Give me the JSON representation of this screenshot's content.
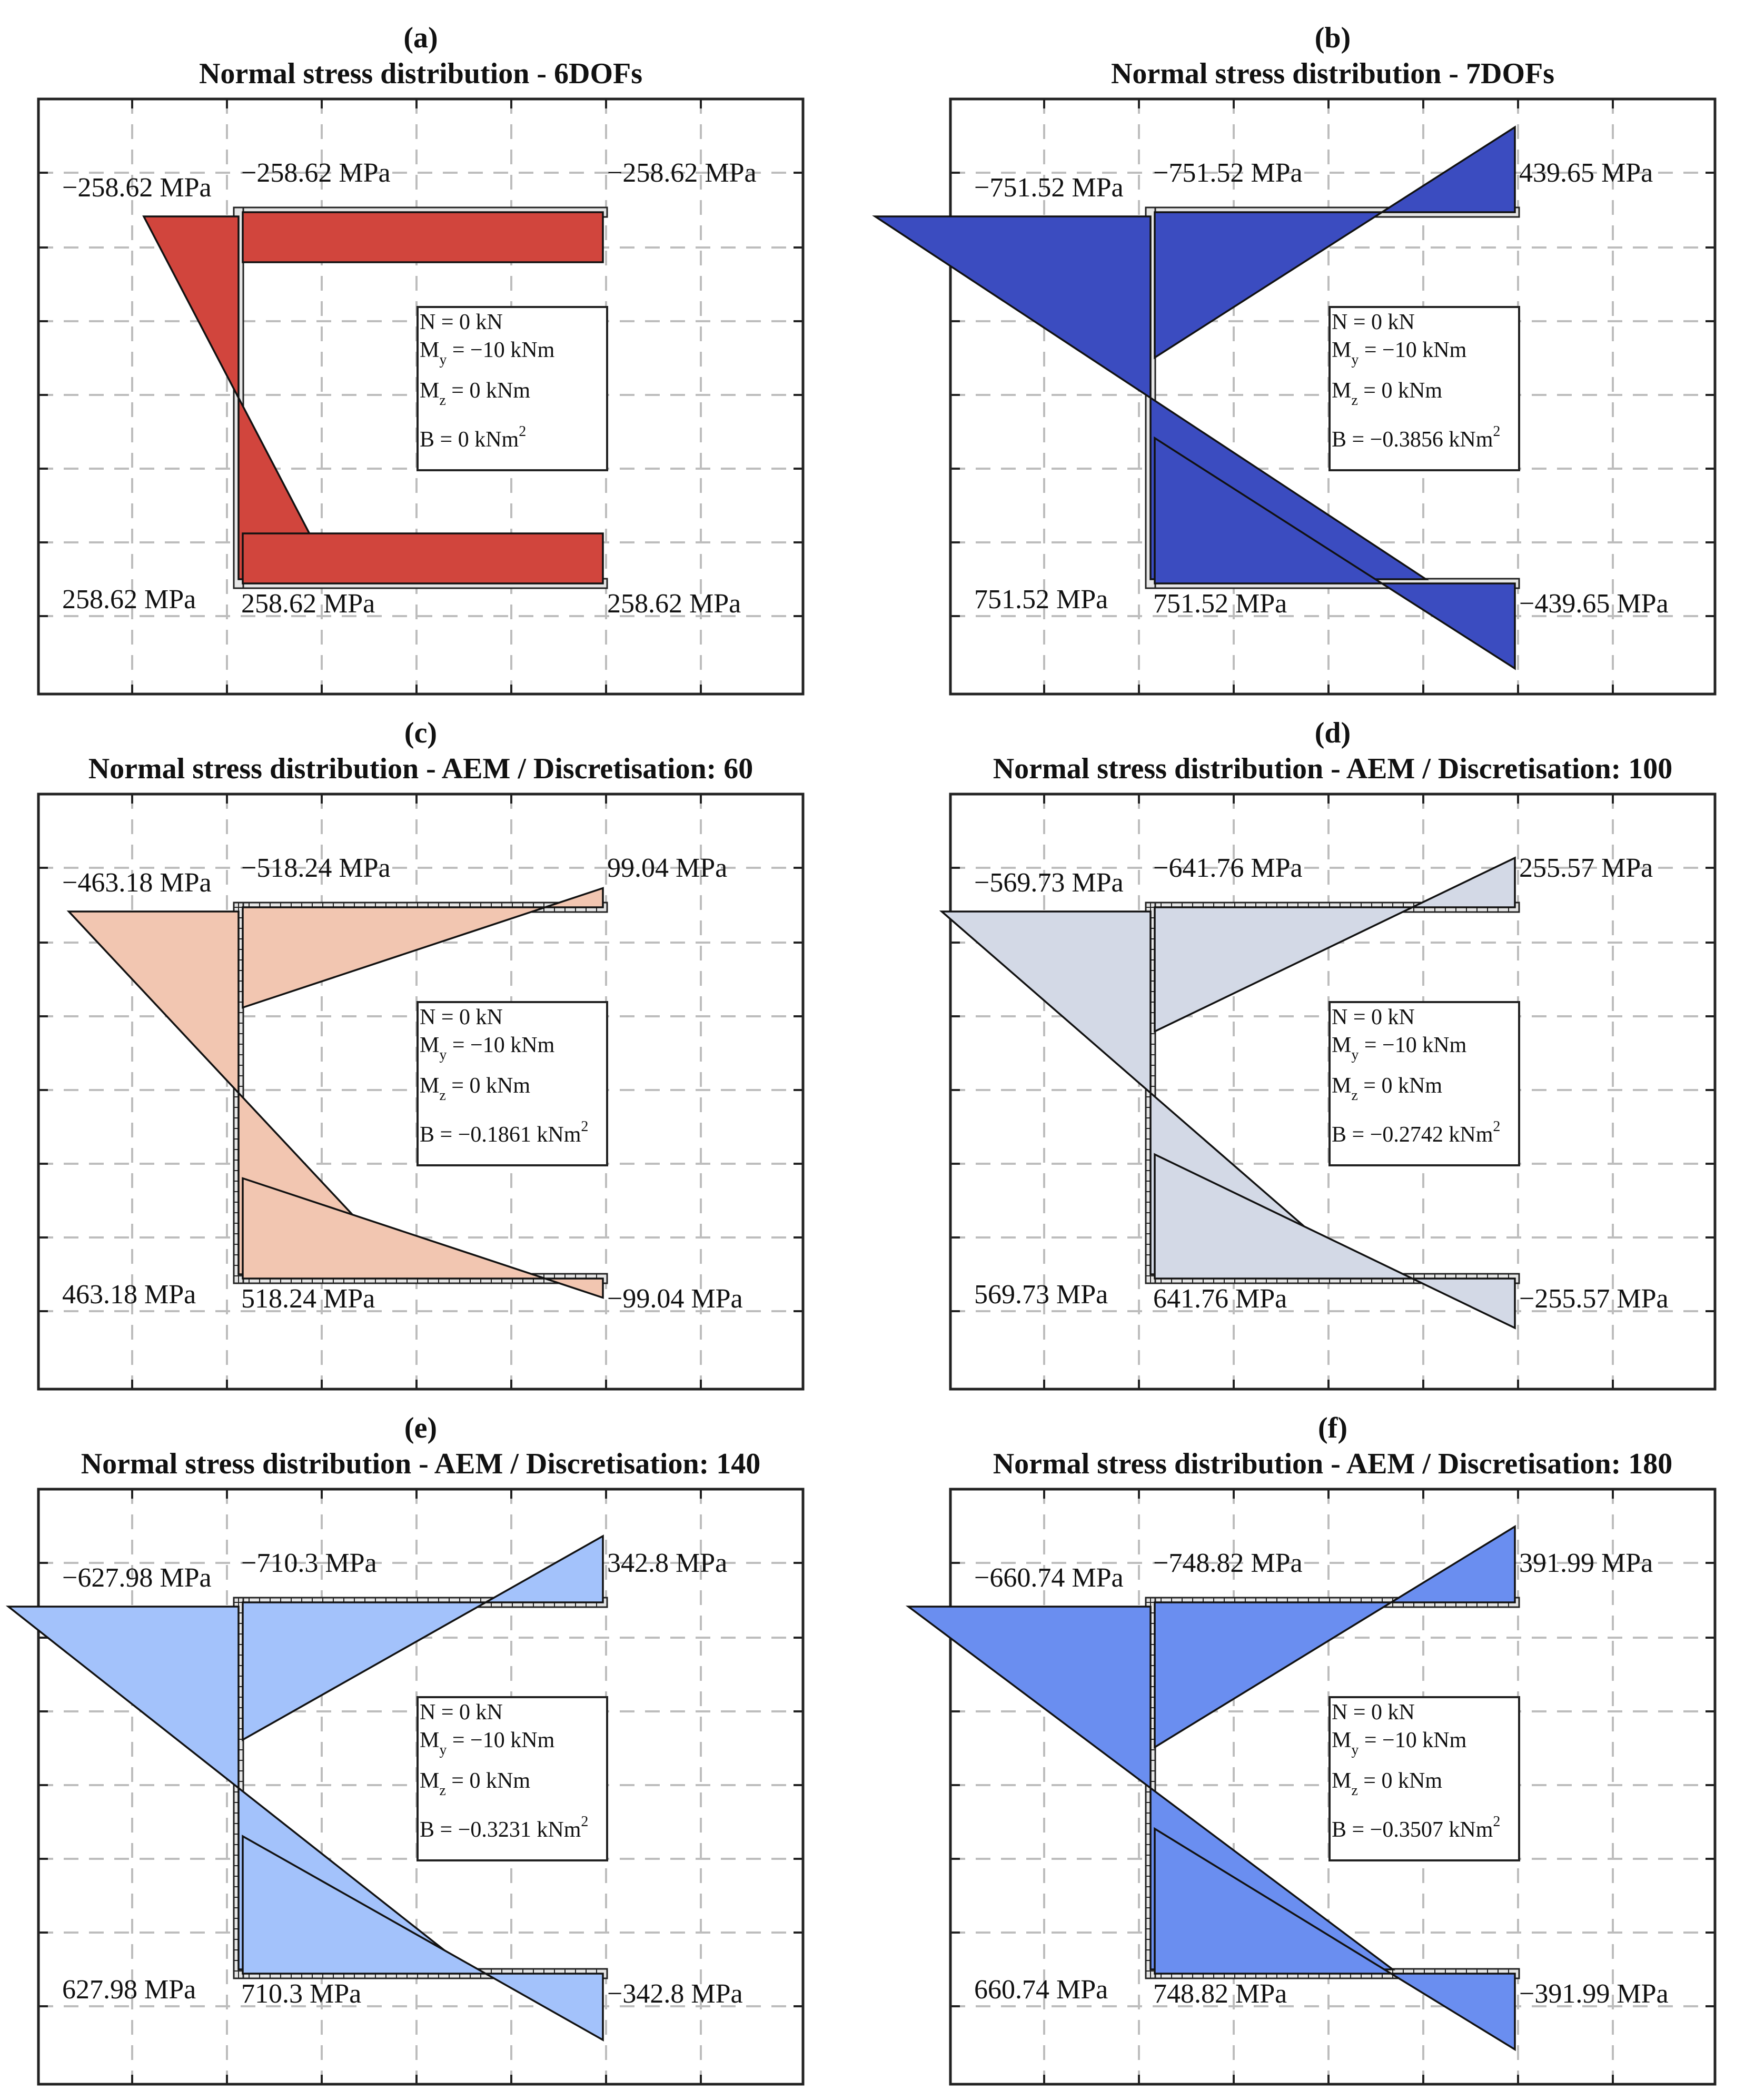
{
  "figure": {
    "panels": [
      {
        "id": "a",
        "letter": "(a)",
        "title": "Normal stress distribution - 6DOFs",
        "fill_color": "#d1453d",
        "section_style": "plain",
        "labels": {
          "top_web": "−258.62 MPa",
          "top_corner": "−258.62 MPa",
          "top_tip": "−258.62 MPa",
          "bottom_web": "258.62 MPa",
          "bottom_corner": "258.62 MPa",
          "bottom_tip": "258.62 MPa"
        },
        "info": {
          "N": "N = 0 kN",
          "My_prefix": "M",
          "My_sub": "y",
          "My_value": " = −10 kNm",
          "Mz_prefix": "M",
          "Mz_sub": "z",
          "Mz_value": " = 0 kNm",
          "B_value": "B = 0 kNm",
          "B_sup": "2"
        }
      },
      {
        "id": "b",
        "letter": "(b)",
        "title": "Normal stress distribution - 7DOFs",
        "fill_color": "#3b4cc0",
        "section_style": "plain",
        "labels": {
          "top_web": "−751.52 MPa",
          "top_corner": "−751.52 MPa",
          "top_tip": "439.65 MPa",
          "bottom_web": "751.52 MPa",
          "bottom_corner": "751.52 MPa",
          "bottom_tip": "−439.65 MPa"
        },
        "info": {
          "N": "N = 0 kN",
          "My_prefix": "M",
          "My_sub": "y",
          "My_value": " = −10 kNm",
          "Mz_prefix": "M",
          "Mz_sub": "z",
          "Mz_value": " = 0 kNm",
          "B_value": "B = −0.3856 kNm",
          "B_sup": "2"
        }
      },
      {
        "id": "c",
        "letter": "(c)",
        "title": "Normal stress distribution - AEM / Discretisation: 60",
        "fill_color": "#f2c6b1",
        "section_style": "discretised",
        "labels": {
          "top_web": "−463.18 MPa",
          "top_corner": "−518.24 MPa",
          "top_tip": "99.04 MPa",
          "bottom_web": "463.18 MPa",
          "bottom_corner": "518.24 MPa",
          "bottom_tip": "−99.04 MPa"
        },
        "info": {
          "N": "N = 0 kN",
          "My_prefix": "M",
          "My_sub": "y",
          "My_value": " = −10 kNm",
          "Mz_prefix": "M",
          "Mz_sub": "z",
          "Mz_value": " = 0 kNm",
          "B_value": "B = −0.1861 kNm",
          "B_sup": "2"
        }
      },
      {
        "id": "d",
        "letter": "(d)",
        "title": "Normal stress distribution - AEM / Discretisation: 100",
        "fill_color": "#d3d9e6",
        "section_style": "discretised",
        "labels": {
          "top_web": "−569.73 MPa",
          "top_corner": "−641.76 MPa",
          "top_tip": "255.57 MPa",
          "bottom_web": "569.73 MPa",
          "bottom_corner": "641.76 MPa",
          "bottom_tip": "−255.57 MPa"
        },
        "info": {
          "N": "N = 0 kN",
          "My_prefix": "M",
          "My_sub": "y",
          "My_value": " = −10 kNm",
          "Mz_prefix": "M",
          "Mz_sub": "z",
          "Mz_value": " = 0 kNm",
          "B_value": "B = −0.2742 kNm",
          "B_sup": "2"
        }
      },
      {
        "id": "e",
        "letter": "(e)",
        "title": "Normal stress distribution - AEM / Discretisation: 140",
        "fill_color": "#a3c2fb",
        "section_style": "discretised",
        "labels": {
          "top_web": "−627.98 MPa",
          "top_corner": "−710.3 MPa",
          "top_tip": "342.8 MPa",
          "bottom_web": "627.98 MPa",
          "bottom_corner": "710.3 MPa",
          "bottom_tip": "−342.8 MPa"
        },
        "info": {
          "N": "N = 0 kN",
          "My_prefix": "M",
          "My_sub": "y",
          "My_value": " = −10 kNm",
          "Mz_prefix": "M",
          "Mz_sub": "z",
          "Mz_value": " = 0 kNm",
          "B_value": "B = −0.3231 kNm",
          "B_sup": "2"
        }
      },
      {
        "id": "f",
        "letter": "(f)",
        "title": "Normal stress distribution - AEM / Discretisation: 180",
        "fill_color": "#6a8ef0",
        "section_style": "discretised",
        "labels": {
          "top_web": "−660.74 MPa",
          "top_corner": "−748.82 MPa",
          "top_tip": "391.99 MPa",
          "bottom_web": "660.74 MPa",
          "bottom_corner": "748.82 MPa",
          "bottom_tip": "−391.99 MPa"
        },
        "info": {
          "N": "N = 0 kN",
          "My_prefix": "M",
          "My_sub": "y",
          "My_value": " = −10 kNm",
          "Mz_prefix": "M",
          "Mz_sub": "z",
          "Mz_value": " = 0 kNm",
          "B_value": "B = −0.3507 kNm",
          "B_sup": "2"
        }
      }
    ]
  },
  "chart_data": [
    {
      "type": "area",
      "title": "Normal stress distribution - 6DOFs",
      "unit": "MPa",
      "points": [
        "web_top",
        "web_bottom",
        "top_flange_tip",
        "bottom_flange_tip"
      ],
      "stress_web_top": -258.62,
      "stress_web_bottom": 258.62,
      "stress_corner_top": -258.62,
      "stress_corner_bottom": 258.62,
      "stress_tip_top": -258.62,
      "stress_tip_bottom": 258.62,
      "N_kN": 0,
      "My_kNm": -10,
      "Mz_kNm": 0,
      "B_kNm2": 0
    },
    {
      "type": "area",
      "title": "Normal stress distribution - 7DOFs",
      "unit": "MPa",
      "stress_web_top": -751.52,
      "stress_web_bottom": 751.52,
      "stress_corner_top": -751.52,
      "stress_corner_bottom": 751.52,
      "stress_tip_top": 439.65,
      "stress_tip_bottom": -439.65,
      "N_kN": 0,
      "My_kNm": -10,
      "Mz_kNm": 0,
      "B_kNm2": -0.3856
    },
    {
      "type": "area",
      "title": "Normal stress distribution - AEM / Discretisation: 60",
      "unit": "MPa",
      "stress_web_top": -463.18,
      "stress_web_bottom": 463.18,
      "stress_corner_top": -518.24,
      "stress_corner_bottom": 518.24,
      "stress_tip_top": 99.04,
      "stress_tip_bottom": -99.04,
      "N_kN": 0,
      "My_kNm": -10,
      "Mz_kNm": 0,
      "B_kNm2": -0.1861
    },
    {
      "type": "area",
      "title": "Normal stress distribution - AEM / Discretisation: 100",
      "unit": "MPa",
      "stress_web_top": -569.73,
      "stress_web_bottom": 569.73,
      "stress_corner_top": -641.76,
      "stress_corner_bottom": 641.76,
      "stress_tip_top": 255.57,
      "stress_tip_bottom": -255.57,
      "N_kN": 0,
      "My_kNm": -10,
      "Mz_kNm": 0,
      "B_kNm2": -0.2742
    },
    {
      "type": "area",
      "title": "Normal stress distribution - AEM / Discretisation: 140",
      "unit": "MPa",
      "stress_web_top": -627.98,
      "stress_web_bottom": 627.98,
      "stress_corner_top": -710.3,
      "stress_corner_bottom": 710.3,
      "stress_tip_top": 342.8,
      "stress_tip_bottom": -342.8,
      "N_kN": 0,
      "My_kNm": -10,
      "Mz_kNm": 0,
      "B_kNm2": -0.3231
    },
    {
      "type": "area",
      "title": "Normal stress distribution - AEM / Discretisation: 180",
      "unit": "MPa",
      "stress_web_top": -660.74,
      "stress_web_bottom": 660.74,
      "stress_corner_top": -748.82,
      "stress_corner_bottom": 748.82,
      "stress_tip_top": 391.99,
      "stress_tip_bottom": -391.99,
      "N_kN": 0,
      "My_kNm": -10,
      "Mz_kNm": 0,
      "B_kNm2": -0.3507
    }
  ]
}
